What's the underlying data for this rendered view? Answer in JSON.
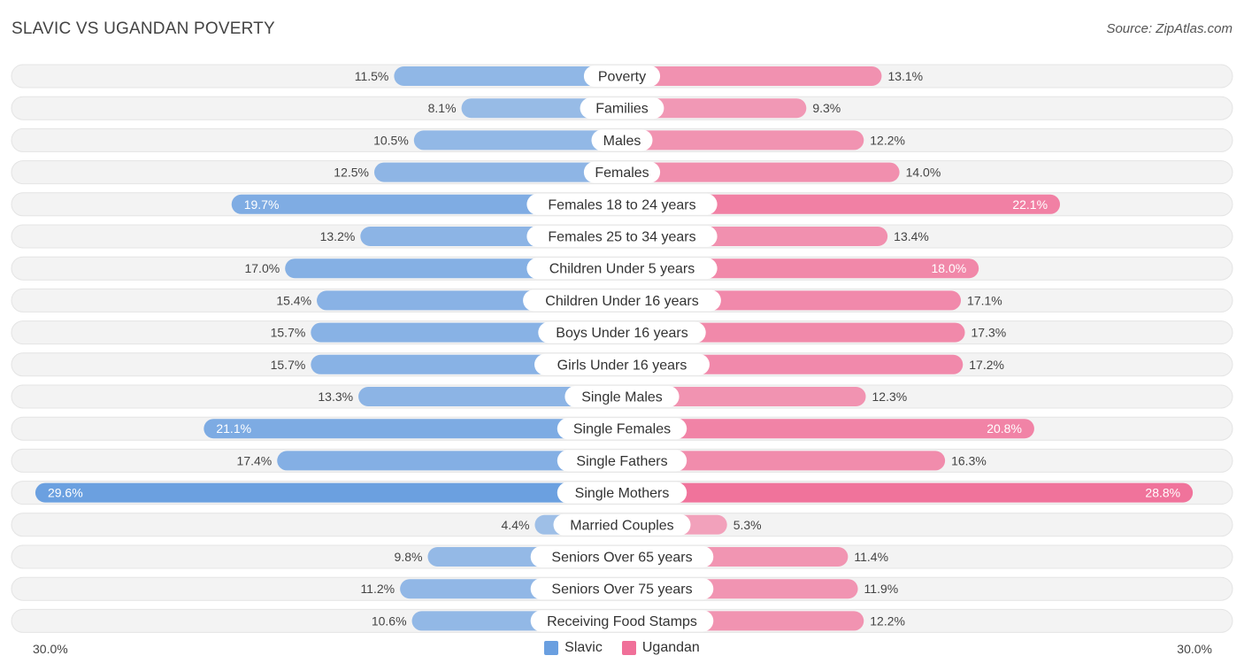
{
  "header": {
    "title": "SLAVIC VS UGANDAN POVERTY",
    "source": "Source: ZipAtlas.com"
  },
  "colors": {
    "left": "#6a9fe0",
    "right": "#f07099",
    "row_bg": "#f2f2f2"
  },
  "chart_data": {
    "type": "bar",
    "orientation": "horizontal-diverging",
    "title": "SLAVIC VS UGANDAN POVERTY",
    "axis_max": 30.0,
    "axis_left_label": "30.0%",
    "axis_right_label": "30.0%",
    "legend": [
      {
        "name": "Slavic",
        "color": "#6a9fe0"
      },
      {
        "name": "Ugandan",
        "color": "#f07099"
      }
    ],
    "categories": [
      "Poverty",
      "Families",
      "Males",
      "Females",
      "Females 18 to 24 years",
      "Females 25 to 34 years",
      "Children Under 5 years",
      "Children Under 16 years",
      "Boys Under 16 years",
      "Girls Under 16 years",
      "Single Males",
      "Single Females",
      "Single Fathers",
      "Single Mothers",
      "Married Couples",
      "Seniors Over 65 years",
      "Seniors Over 75 years",
      "Receiving Food Stamps"
    ],
    "series": [
      {
        "name": "Slavic",
        "values": [
          11.5,
          8.1,
          10.5,
          12.5,
          19.7,
          13.2,
          17.0,
          15.4,
          15.7,
          15.7,
          13.3,
          21.1,
          17.4,
          29.6,
          4.4,
          9.8,
          11.2,
          10.6
        ]
      },
      {
        "name": "Ugandan",
        "values": [
          13.1,
          9.3,
          12.2,
          14.0,
          22.1,
          13.4,
          18.0,
          17.1,
          17.3,
          17.2,
          12.3,
          20.8,
          16.3,
          28.8,
          5.3,
          11.4,
          11.9,
          12.2
        ]
      }
    ],
    "left_labels": [
      "11.5%",
      "8.1%",
      "10.5%",
      "12.5%",
      "19.7%",
      "13.2%",
      "17.0%",
      "15.4%",
      "15.7%",
      "15.7%",
      "13.3%",
      "21.1%",
      "17.4%",
      "29.6%",
      "4.4%",
      "9.8%",
      "11.2%",
      "10.6%"
    ],
    "right_labels": [
      "13.1%",
      "9.3%",
      "12.2%",
      "14.0%",
      "22.1%",
      "13.4%",
      "18.0%",
      "17.1%",
      "17.3%",
      "17.2%",
      "12.3%",
      "20.8%",
      "16.3%",
      "28.8%",
      "5.3%",
      "11.4%",
      "11.9%",
      "12.2%"
    ]
  }
}
